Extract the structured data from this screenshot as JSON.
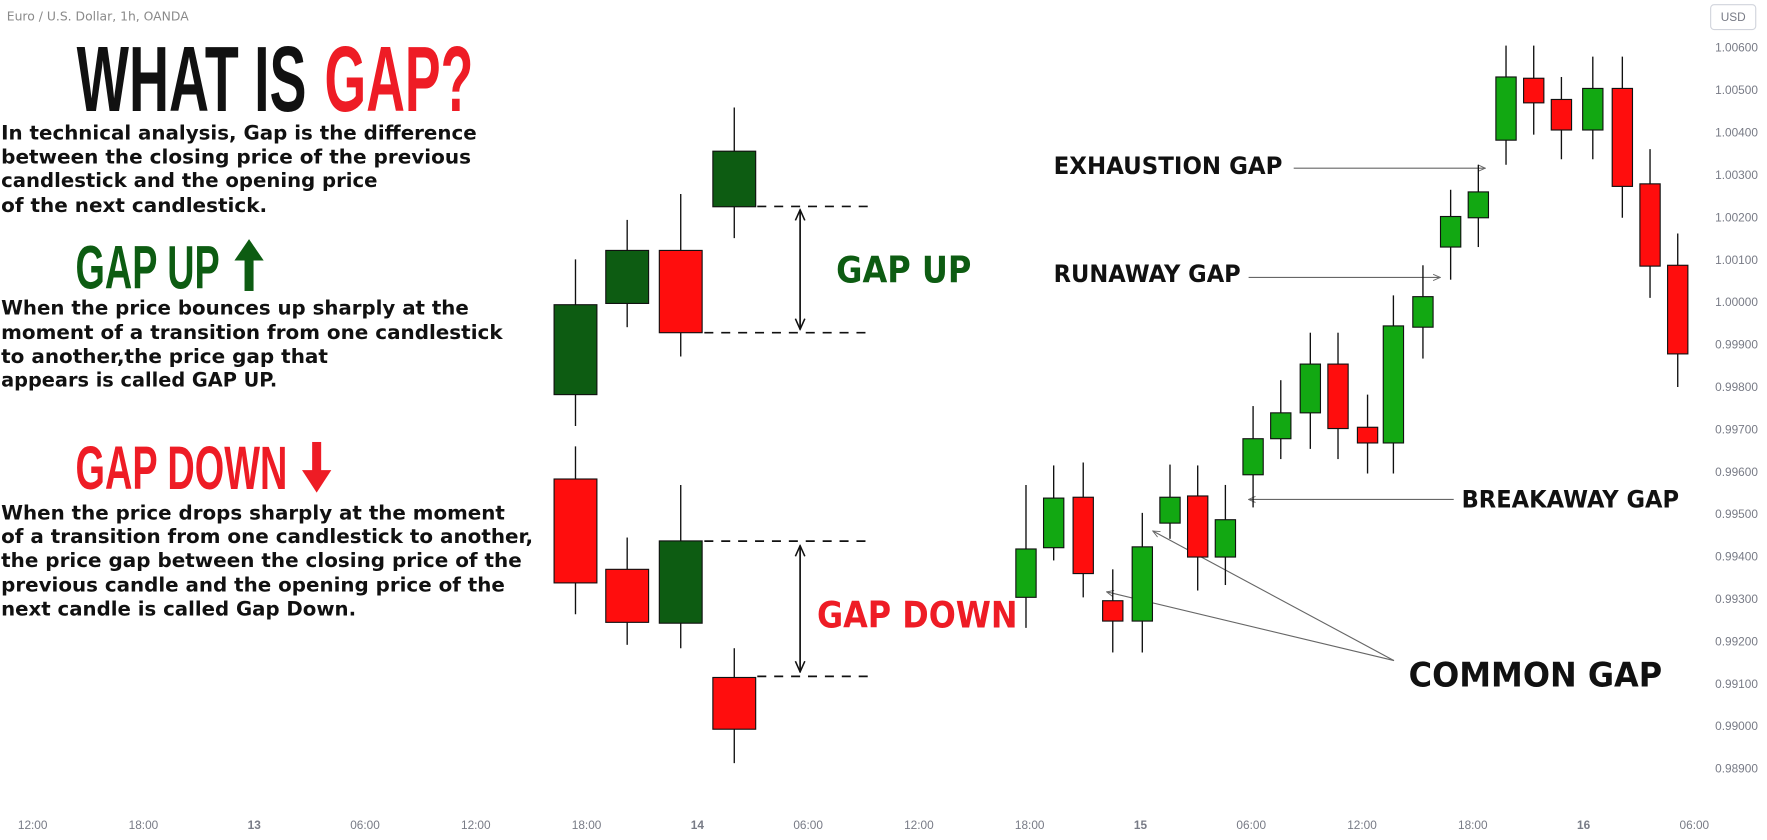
{
  "chart_data": {
    "type": "candlestick",
    "title": "Euro / U.S. Dollar, 1h, OANDA",
    "currency": "USD",
    "grid": false,
    "xlim": [
      -1.77,
      90.7
    ],
    "xticks": [
      {
        "value": 0,
        "label": "12:00"
      },
      {
        "value": 6,
        "label": "18:00"
      },
      {
        "value": 12,
        "label": "13"
      },
      {
        "value": 18,
        "label": "06:00"
      },
      {
        "value": 24,
        "label": "12:00"
      },
      {
        "value": 30,
        "label": "18:00"
      },
      {
        "value": 36,
        "label": "14"
      },
      {
        "value": 42,
        "label": "06:00"
      },
      {
        "value": 48,
        "label": "12:00"
      },
      {
        "value": 54,
        "label": "18:00"
      },
      {
        "value": 60,
        "label": "15"
      },
      {
        "value": 66,
        "label": "06:00"
      },
      {
        "value": 72,
        "label": "12:00"
      },
      {
        "value": 78,
        "label": "18:00"
      },
      {
        "value": 84,
        "label": "16"
      },
      {
        "value": 90,
        "label": "06:00"
      }
    ],
    "ylim": [
      0.98812,
      1.00712
    ],
    "yticks": [
      {
        "value": 1.006,
        "label": "1.00600"
      },
      {
        "value": 1.005,
        "label": "1.00500"
      },
      {
        "value": 1.004,
        "label": "1.00400"
      },
      {
        "value": 1.003,
        "label": "1.00300"
      },
      {
        "value": 1.002,
        "label": "1.00200"
      },
      {
        "value": 1.001,
        "label": "1.00100"
      },
      {
        "value": 1.0,
        "label": "1.00000"
      },
      {
        "value": 0.999,
        "label": "0.99900"
      },
      {
        "value": 0.998,
        "label": "0.99800"
      },
      {
        "value": 0.997,
        "label": "0.99700"
      },
      {
        "value": 0.996,
        "label": "0.99600"
      },
      {
        "value": 0.995,
        "label": "0.99500"
      },
      {
        "value": 0.994,
        "label": "0.99400"
      },
      {
        "value": 0.993,
        "label": "0.99300"
      },
      {
        "value": 0.992,
        "label": "0.99200"
      },
      {
        "value": 0.991,
        "label": "0.99100"
      },
      {
        "value": 0.99,
        "label": "0.99000"
      },
      {
        "value": 0.989,
        "label": "0.98900"
      }
    ],
    "up_color": "#12a812",
    "down_color": "#ff0d0d",
    "candles": [
      {
        "x": 53.8,
        "open": 0.99304,
        "high": 0.99569,
        "low": 0.99232,
        "close": 0.99418
      },
      {
        "x": 55.3,
        "open": 0.99421,
        "high": 0.99615,
        "low": 0.99391,
        "close": 0.99538
      },
      {
        "x": 56.9,
        "open": 0.9954,
        "high": 0.99622,
        "low": 0.99304,
        "close": 0.9936
      },
      {
        "x": 58.5,
        "open": 0.99296,
        "high": 0.9937,
        "low": 0.99174,
        "close": 0.99248
      },
      {
        "x": 60.1,
        "open": 0.99248,
        "high": 0.99503,
        "low": 0.99174,
        "close": 0.99423
      },
      {
        "x": 61.6,
        "open": 0.99479,
        "high": 0.99617,
        "low": 0.99442,
        "close": 0.9954
      },
      {
        "x": 63.1,
        "open": 0.99543,
        "high": 0.99615,
        "low": 0.9932,
        "close": 0.99399
      },
      {
        "x": 64.6,
        "open": 0.99399,
        "high": 0.99569,
        "low": 0.99333,
        "close": 0.99487
      },
      {
        "x": 66.1,
        "open": 0.99593,
        "high": 0.99755,
        "low": 0.99516,
        "close": 0.99678
      },
      {
        "x": 67.6,
        "open": 0.99678,
        "high": 0.99816,
        "low": 0.9963,
        "close": 0.99739
      },
      {
        "x": 69.2,
        "open": 0.99739,
        "high": 0.99928,
        "low": 0.99654,
        "close": 0.99854
      },
      {
        "x": 70.7,
        "open": 0.99854,
        "high": 0.99928,
        "low": 0.9963,
        "close": 0.99702
      },
      {
        "x": 72.3,
        "open": 0.99705,
        "high": 0.99782,
        "low": 0.99596,
        "close": 0.99668
      },
      {
        "x": 73.7,
        "open": 0.99668,
        "high": 1.00016,
        "low": 0.99596,
        "close": 0.99944
      },
      {
        "x": 75.3,
        "open": 0.99941,
        "high": 1.00087,
        "low": 0.99867,
        "close": 1.00013
      },
      {
        "x": 76.8,
        "open": 1.0013,
        "high": 1.00265,
        "low": 1.00053,
        "close": 1.00202
      },
      {
        "x": 78.3,
        "open": 1.00199,
        "high": 1.00324,
        "low": 1.0013,
        "close": 1.0026
      },
      {
        "x": 79.8,
        "open": 1.00382,
        "high": 1.00605,
        "low": 1.00324,
        "close": 1.00531
      },
      {
        "x": 81.3,
        "open": 1.00528,
        "high": 1.00605,
        "low": 1.00395,
        "close": 1.0047
      },
      {
        "x": 82.8,
        "open": 1.00478,
        "high": 1.00531,
        "low": 1.00337,
        "close": 1.00406
      },
      {
        "x": 84.5,
        "open": 1.00406,
        "high": 1.00579,
        "low": 1.00337,
        "close": 1.00504
      },
      {
        "x": 86.1,
        "open": 1.00504,
        "high": 1.00579,
        "low": 1.00199,
        "close": 1.00273
      },
      {
        "x": 87.6,
        "open": 1.00279,
        "high": 1.00361,
        "low": 1.0001,
        "close": 1.00085
      },
      {
        "x": 89.1,
        "open": 1.00087,
        "high": 1.00162,
        "low": 0.998,
        "close": 0.99878
      }
    ],
    "gap_up_example": {
      "up_color": "#0d5c12",
      "down_color": "#ff0d0d",
      "candles": [
        {
          "x": 29.4,
          "open": 0.99782,
          "high": 1.00101,
          "low": 0.99708,
          "close": 0.99994
        },
        {
          "x": 32.2,
          "open": 0.99997,
          "high": 1.00194,
          "low": 0.99941,
          "close": 1.00122
        },
        {
          "x": 35.1,
          "open": 1.00122,
          "high": 1.00255,
          "low": 0.99872,
          "close": 0.99928
        },
        {
          "x": 38.0,
          "open": 1.00225,
          "high": 1.00459,
          "low": 1.00151,
          "close": 1.00356
        }
      ]
    },
    "gap_down_example": {
      "up_color": "#0d5c12",
      "down_color": "#ff0d0d",
      "candles": [
        {
          "x": 29.4,
          "open": 0.99583,
          "high": 0.9966,
          "low": 0.99264,
          "close": 0.99338
        },
        {
          "x": 32.2,
          "open": 0.9937,
          "high": 0.99445,
          "low": 0.99192,
          "close": 0.99245
        },
        {
          "x": 35.1,
          "open": 0.99243,
          "high": 0.99569,
          "low": 0.99184,
          "close": 0.99437
        },
        {
          "x": 38.0,
          "open": 0.99115,
          "high": 0.99184,
          "low": 0.98913,
          "close": 0.98993
        }
      ]
    },
    "annotations": {
      "gap_up": "GAP UP",
      "gap_down": "GAP DOWN",
      "exhaustion": "EXHAUSTION GAP",
      "runaway": "RUNAWAY GAP",
      "breakaway": "BREAKAWAY GAP",
      "common": "COMMON GAP"
    }
  },
  "explainer": {
    "title": [
      "WHAT IS",
      "GAP?"
    ],
    "intro": [
      "In technical analysis, Gap is the difference",
      "between the closing price of the previous",
      "candlestick and the opening price",
      "of the next candlestick."
    ],
    "gap_up": {
      "heading": "GAP UP",
      "lines": [
        "When the price bounces up sharply at the",
        "moment of a transition from one candlestick",
        "to another,the price gap that",
        "appears is called GAP UP."
      ]
    },
    "gap_down": {
      "heading": "GAP DOWN",
      "lines": [
        "When the price drops sharply at the moment",
        "of a transition from one candlestick to another,",
        "the price gap between the closing price of the",
        "previous candle and the opening price of the",
        "next candle is called Gap Down."
      ]
    }
  }
}
